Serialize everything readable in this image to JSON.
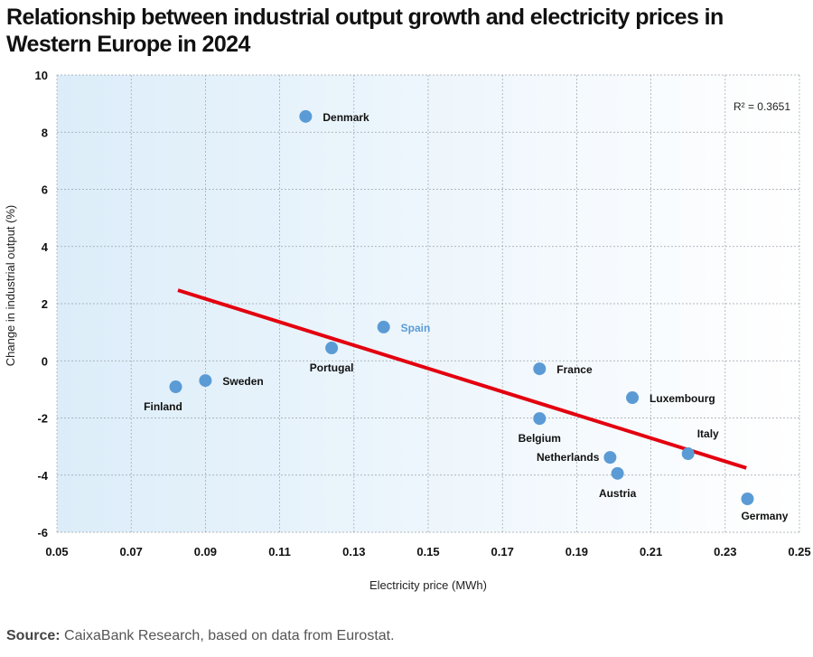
{
  "chart_data": {
    "type": "scatter",
    "title": "Relationship between industrial output growth and electricity prices in Western Europe in 2024",
    "xlabel": "Electricity price (MWh)",
    "ylabel": "Change in industrial output (%)",
    "xlim": [
      0.05,
      0.25
    ],
    "ylim": [
      -6,
      10
    ],
    "xticks": [
      "0.05",
      "0.07",
      "0.09",
      "0.11",
      "0.13",
      "0.15",
      "0.17",
      "0.19",
      "0.21",
      "0.23",
      "0.25"
    ],
    "yticks": [
      "-6",
      "-4",
      "-2",
      "0",
      "2",
      "4",
      "6",
      "8",
      "10"
    ],
    "grid": true,
    "annotation": "R² = 0.3651",
    "points": [
      {
        "label": "Denmark",
        "x": 0.117,
        "y": 8.55,
        "label_position": "right"
      },
      {
        "label": "Spain",
        "x": 0.138,
        "y": 1.18,
        "label_position": "right",
        "highlight": true
      },
      {
        "label": "Portugal",
        "x": 0.124,
        "y": 0.45,
        "label_position": "below"
      },
      {
        "label": "Finland",
        "x": 0.082,
        "y": -0.91,
        "label_position": "below-left"
      },
      {
        "label": "Sweden",
        "x": 0.09,
        "y": -0.69,
        "label_position": "right"
      },
      {
        "label": "France",
        "x": 0.18,
        "y": -0.28,
        "label_position": "right"
      },
      {
        "label": "Luxembourg",
        "x": 0.205,
        "y": -1.29,
        "label_position": "right"
      },
      {
        "label": "Belgium",
        "x": 0.18,
        "y": -2.02,
        "label_position": "below"
      },
      {
        "label": "Italy",
        "x": 0.22,
        "y": -3.25,
        "label_position": "above-right"
      },
      {
        "label": "Netherlands",
        "x": 0.199,
        "y": -3.38,
        "label_position": "left"
      },
      {
        "label": "Austria",
        "x": 0.201,
        "y": -3.94,
        "label_position": "below"
      },
      {
        "label": "Germany",
        "x": 0.236,
        "y": -4.83,
        "label_position": "below-right"
      }
    ],
    "trendline": {
      "x": [
        0.0826,
        0.2357
      ],
      "y": [
        2.47,
        -3.75
      ]
    },
    "colors": {
      "point": "#5b9bd5",
      "highlight_label": "#5b9bd5",
      "trendline": "#e3000f",
      "background_left": "#dcedf9",
      "background_right": "#ffffff"
    }
  },
  "source": {
    "label": "Source:",
    "text": " CaixaBank Research, based on data from Eurostat."
  }
}
